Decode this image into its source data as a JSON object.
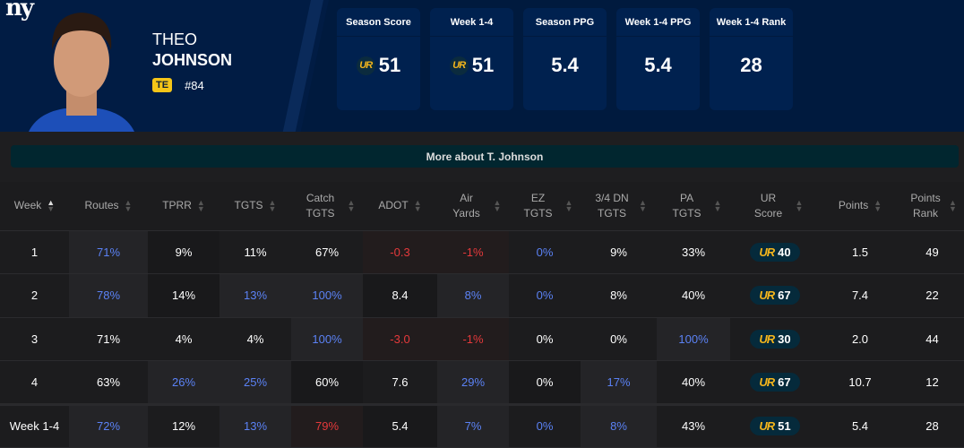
{
  "team_logo": "ny",
  "player": {
    "first_name": "THEO",
    "last_name": "JOHNSON",
    "position": "TE",
    "number": "#84"
  },
  "cards": [
    {
      "label": "Season Score",
      "value": "51",
      "ur_icon": true
    },
    {
      "label": "Week 1-4",
      "value": "51",
      "ur_icon": true
    },
    {
      "label": "Season PPG",
      "value": "5.4",
      "ur_icon": false
    },
    {
      "label": "Week 1-4 PPG",
      "value": "5.4",
      "ur_icon": false
    },
    {
      "label": "Week 1-4 Rank",
      "value": "28",
      "ur_icon": false
    }
  ],
  "ur_glyph": "UR",
  "more_button": "More about T. Johnson",
  "colors": {
    "accent_blue": "#5b82f5",
    "negative_red": "#e5393b",
    "ur_gold": "#f5b61c",
    "header_bg": "#011c44"
  },
  "table": {
    "headers": [
      "Week",
      "Routes",
      "TPRR",
      "TGTS",
      "Catch TGTS",
      "ADOT",
      "Air Yards",
      "EZ TGTS",
      "3/4 DN TGTS",
      "PA TGTS",
      "UR Score",
      "Points",
      "Points Rank"
    ],
    "sorted_column": "Week",
    "rows": [
      {
        "cells": [
          [
            "1",
            "w",
            ""
          ],
          [
            "71%",
            "b",
            "light"
          ],
          [
            "9%",
            "w",
            "dark"
          ],
          [
            "11%",
            "w",
            ""
          ],
          [
            "67%",
            "w",
            ""
          ],
          [
            "-0.3",
            "r",
            "neg"
          ],
          [
            "-1%",
            "r",
            "neg"
          ],
          [
            "0%",
            "b",
            ""
          ],
          [
            "9%",
            "w",
            ""
          ],
          [
            "33%",
            "w",
            ""
          ],
          [
            "40",
            "ur",
            ""
          ],
          [
            "1.5",
            "w",
            ""
          ],
          [
            "49",
            "w",
            ""
          ]
        ]
      },
      {
        "cells": [
          [
            "2",
            "w",
            ""
          ],
          [
            "78%",
            "b",
            "light"
          ],
          [
            "14%",
            "w",
            "dark"
          ],
          [
            "13%",
            "b",
            "light"
          ],
          [
            "100%",
            "b",
            "light"
          ],
          [
            "8.4",
            "w",
            "dark"
          ],
          [
            "8%",
            "b",
            "light"
          ],
          [
            "0%",
            "b",
            ""
          ],
          [
            "8%",
            "w",
            ""
          ],
          [
            "40%",
            "w",
            ""
          ],
          [
            "67",
            "ur",
            ""
          ],
          [
            "7.4",
            "w",
            ""
          ],
          [
            "22",
            "w",
            ""
          ]
        ]
      },
      {
        "cells": [
          [
            "3",
            "w",
            ""
          ],
          [
            "71%",
            "w",
            ""
          ],
          [
            "4%",
            "w",
            ""
          ],
          [
            "4%",
            "w",
            ""
          ],
          [
            "100%",
            "b",
            "light"
          ],
          [
            "-3.0",
            "r",
            "neg"
          ],
          [
            "-1%",
            "r",
            "neg"
          ],
          [
            "0%",
            "w",
            ""
          ],
          [
            "0%",
            "w",
            ""
          ],
          [
            "100%",
            "b",
            "light"
          ],
          [
            "30",
            "ur",
            ""
          ],
          [
            "2.0",
            "w",
            ""
          ],
          [
            "44",
            "w",
            ""
          ]
        ]
      },
      {
        "cells": [
          [
            "4",
            "w",
            ""
          ],
          [
            "63%",
            "w",
            ""
          ],
          [
            "26%",
            "b",
            "light"
          ],
          [
            "25%",
            "b",
            "light"
          ],
          [
            "60%",
            "w",
            "dark"
          ],
          [
            "7.6",
            "w",
            ""
          ],
          [
            "29%",
            "b",
            "light"
          ],
          [
            "0%",
            "w",
            "dark"
          ],
          [
            "17%",
            "b",
            "light"
          ],
          [
            "40%",
            "w",
            ""
          ],
          [
            "67",
            "ur",
            ""
          ],
          [
            "10.7",
            "w",
            ""
          ],
          [
            "12",
            "w",
            ""
          ]
        ]
      },
      {
        "total": true,
        "cells": [
          [
            "Week 1-4",
            "w",
            ""
          ],
          [
            "72%",
            "b",
            "light"
          ],
          [
            "12%",
            "w",
            ""
          ],
          [
            "13%",
            "b",
            "light"
          ],
          [
            "79%",
            "r",
            "neg"
          ],
          [
            "5.4",
            "w",
            "dark"
          ],
          [
            "7%",
            "b",
            "light"
          ],
          [
            "0%",
            "b",
            ""
          ],
          [
            "8%",
            "b",
            "light"
          ],
          [
            "43%",
            "w",
            ""
          ],
          [
            "51",
            "ur",
            ""
          ],
          [
            "5.4",
            "w",
            ""
          ],
          [
            "28",
            "w",
            ""
          ]
        ]
      }
    ]
  }
}
